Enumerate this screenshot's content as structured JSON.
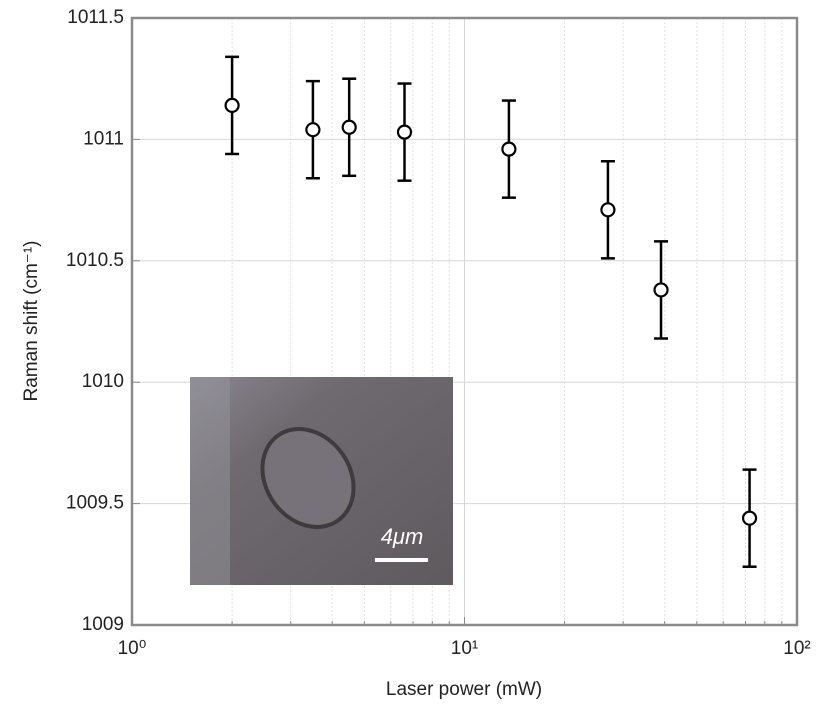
{
  "chart_data": {
    "type": "errorbar-scatter",
    "xlabel": "Laser power (mW)",
    "ylabel": "Raman shift (cm⁻¹)",
    "x_scale": "log",
    "grid": true,
    "xlim": [
      1,
      100
    ],
    "xticks": [
      {
        "value": 1,
        "label": "10⁰"
      },
      {
        "value": 10,
        "label": "10¹"
      },
      {
        "value": 100,
        "label": "10²"
      }
    ],
    "xminorticks": [
      2,
      3,
      4,
      5,
      6,
      7,
      8,
      9,
      20,
      30,
      40,
      50,
      60,
      70,
      80,
      90
    ],
    "ylim": [
      1009,
      1011.5
    ],
    "yticks": [
      1009,
      1009.5,
      1010,
      1010.5,
      1011,
      1011.5
    ],
    "annotations": [
      "4μm"
    ],
    "series": [
      {
        "color": "#000000",
        "x": [
          2,
          3.5,
          4.5,
          6.6,
          13.6,
          27,
          39,
          72
        ],
        "values": [
          1011.14,
          1011.04,
          1011.05,
          1011.03,
          1010.96,
          1010.71,
          1010.38,
          1009.44
        ],
        "errors": [
          0.2,
          0.2,
          0.2,
          0.2,
          0.2,
          0.2,
          0.2,
          0.2
        ]
      }
    ]
  }
}
